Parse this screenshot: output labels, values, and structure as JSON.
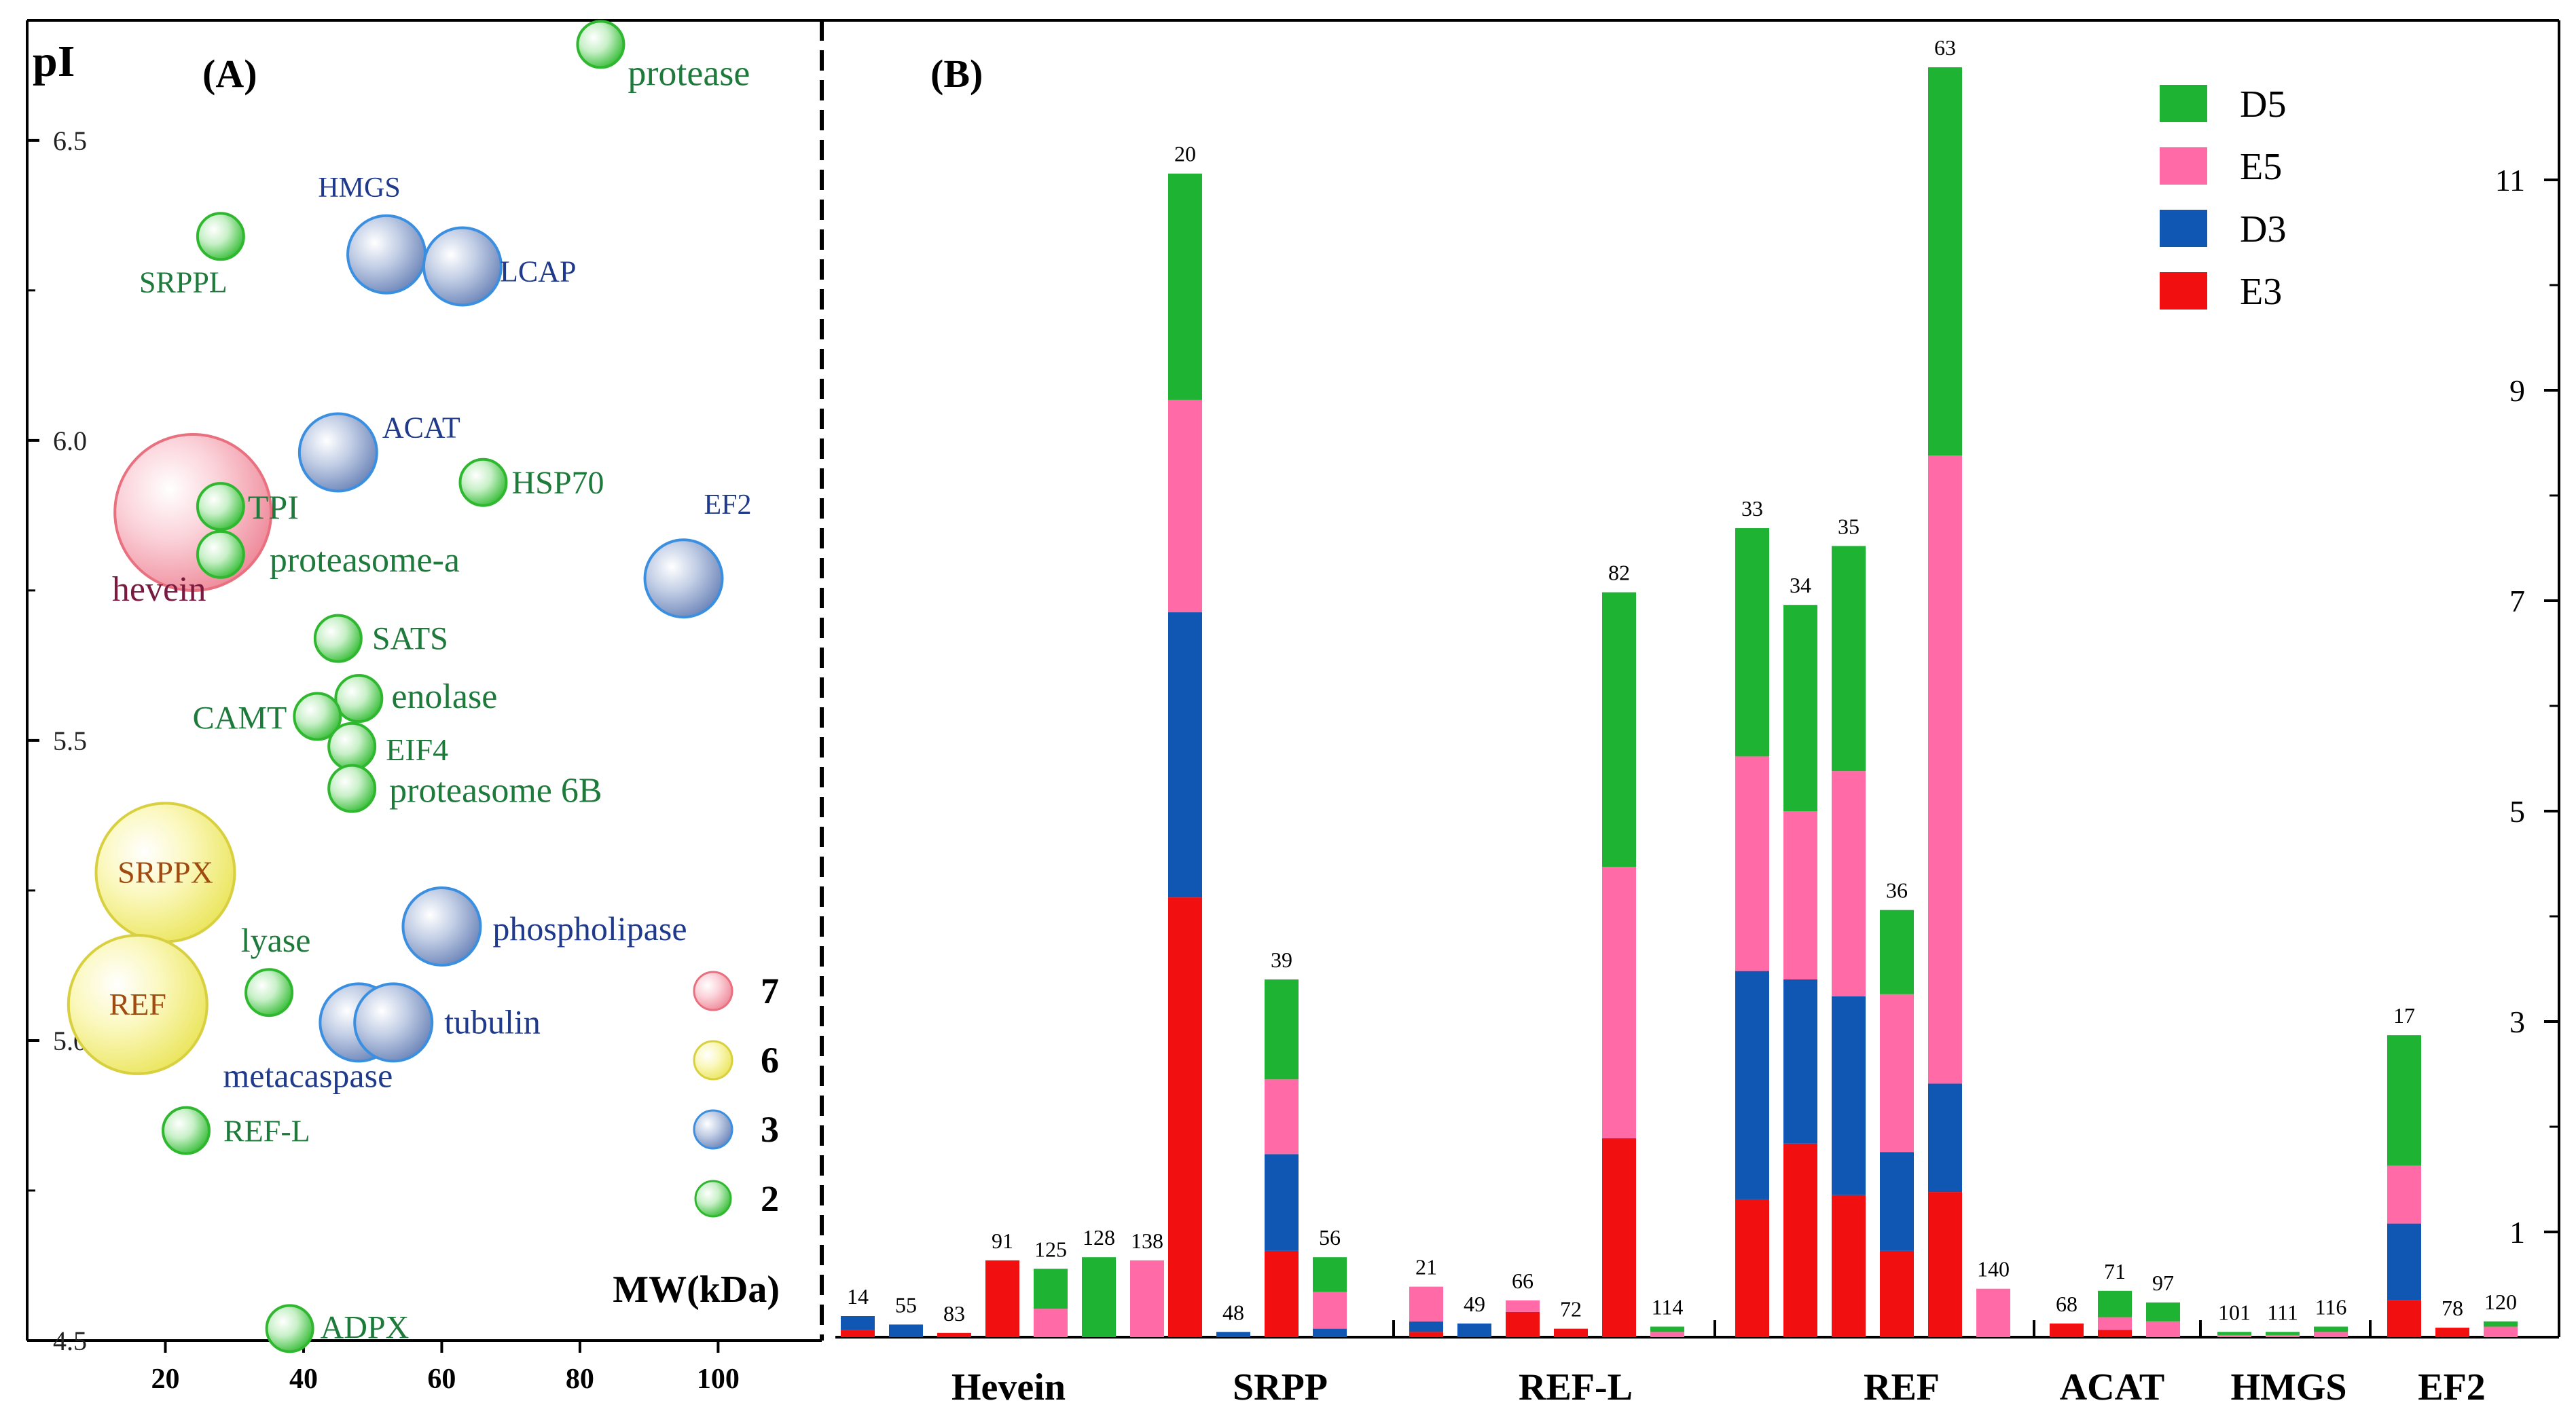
{
  "chart_data": [
    {
      "type": "scatter",
      "panel_label": "(A)",
      "ylabel": "pI",
      "xlabel": "MW(kDa)",
      "xlim": [
        0,
        115
      ],
      "ylim": [
        4.5,
        6.7
      ],
      "x_ticks": [
        20,
        40,
        60,
        80,
        100
      ],
      "y_ticks": [
        4.5,
        5.0,
        5.5,
        6.0,
        6.5
      ],
      "y_tick_labels": [
        "4.5",
        "5.0",
        "5.5",
        "6.0",
        "6.5"
      ],
      "size_legend": [
        {
          "label": "7",
          "value": 7,
          "color": "#f08a9a"
        },
        {
          "label": "6",
          "value": 6,
          "color": "#f0ec70"
        },
        {
          "label": "3",
          "value": 3,
          "color": "#7f96c4"
        },
        {
          "label": "2",
          "value": 2,
          "color": "#40c040"
        }
      ],
      "points": [
        {
          "name": "protease",
          "x": 83,
          "y": 6.66,
          "size": 2
        },
        {
          "name": "SRPPL",
          "x": 28,
          "y": 6.34,
          "size": 2
        },
        {
          "name": "HMGS",
          "x": 52,
          "y": 6.31,
          "size": 3
        },
        {
          "name": "LCAP",
          "x": 63,
          "y": 6.29,
          "size": 3
        },
        {
          "name": "ACAT",
          "x": 45,
          "y": 5.98,
          "size": 3
        },
        {
          "name": "HSP70",
          "x": 66,
          "y": 5.93,
          "size": 2
        },
        {
          "name": "EF2",
          "x": 95,
          "y": 5.77,
          "size": 3
        },
        {
          "name": "hevein",
          "x": 24,
          "y": 5.88,
          "size": 7
        },
        {
          "name": "TPI",
          "x": 28,
          "y": 5.89,
          "size": 2
        },
        {
          "name": "proteasome-a",
          "x": 28,
          "y": 5.81,
          "size": 2
        },
        {
          "name": "SATS",
          "x": 45,
          "y": 5.67,
          "size": 2
        },
        {
          "name": "enolase",
          "x": 48,
          "y": 5.57,
          "size": 2
        },
        {
          "name": "CAMT",
          "x": 42,
          "y": 5.54,
          "size": 2
        },
        {
          "name": "EIF4",
          "x": 47,
          "y": 5.49,
          "size": 2
        },
        {
          "name": "proteasome 6B",
          "x": 47,
          "y": 5.42,
          "size": 2
        },
        {
          "name": "SRPPX",
          "x": 20,
          "y": 5.28,
          "size": 6
        },
        {
          "name": "phospholipase",
          "x": 60,
          "y": 5.19,
          "size": 3
        },
        {
          "name": "lyase",
          "x": 35,
          "y": 5.08,
          "size": 2
        },
        {
          "name": "REF",
          "x": 16,
          "y": 5.06,
          "size": 6
        },
        {
          "name": "metacaspase",
          "x": 48,
          "y": 5.03,
          "size": 3
        },
        {
          "name": "tubulin",
          "x": 53,
          "y": 5.03,
          "size": 3
        },
        {
          "name": "REF-L",
          "x": 23,
          "y": 4.85,
          "size": 2
        },
        {
          "name": "ADPX",
          "x": 38,
          "y": 4.52,
          "size": 2
        }
      ]
    },
    {
      "type": "bar",
      "stacked": true,
      "panel_label": "(B)",
      "ylim": [
        0,
        12
      ],
      "y_ticks": [
        1,
        3,
        5,
        7,
        9,
        11
      ],
      "y_axis_side": "right",
      "legend": [
        {
          "name": "D5",
          "color": "#1eb332"
        },
        {
          "name": "E5",
          "color": "#ff6aa7"
        },
        {
          "name": "D3",
          "color": "#0f57b3"
        },
        {
          "name": "E3",
          "color": "#f20f0f"
        }
      ],
      "groups": [
        {
          "name": "Hevein",
          "spots": [
            {
              "id": "14",
              "E3": 0.07,
              "D3": 0.13,
              "E5": 0,
              "D5": 0
            },
            {
              "id": "55",
              "E3": 0,
              "D3": 0.12,
              "E5": 0,
              "D5": 0
            },
            {
              "id": "83",
              "E3": 0.04,
              "D3": 0,
              "E5": 0,
              "D5": 0
            },
            {
              "id": "91",
              "E3": 0.73,
              "D3": 0,
              "E5": 0,
              "D5": 0
            },
            {
              "id": "125",
              "E3": 0,
              "D3": 0,
              "E5": 0.27,
              "D5": 0.38
            },
            {
              "id": "128",
              "E3": 0,
              "D3": 0,
              "E5": 0,
              "D5": 0.76
            },
            {
              "id": "138",
              "E3": 0,
              "D3": 0,
              "E5": 0.73,
              "D5": 0
            }
          ]
        },
        {
          "name": "SRPP",
          "spots": [
            {
              "id": "20",
              "E3": 4.18,
              "D3": 2.71,
              "E5": 2.02,
              "D5": 2.15
            },
            {
              "id": "48",
              "E3": 0,
              "D3": 0.05,
              "E5": 0,
              "D5": 0
            },
            {
              "id": "39",
              "E3": 0.82,
              "D3": 0.92,
              "E5": 0.71,
              "D5": 0.95
            },
            {
              "id": "56",
              "E3": 0,
              "D3": 0.08,
              "E5": 0.35,
              "D5": 0.33
            }
          ]
        },
        {
          "name": "REF-L",
          "spots": [
            {
              "id": "21",
              "E3": 0.05,
              "D3": 0.1,
              "E5": 0.33,
              "D5": 0
            },
            {
              "id": "49",
              "E3": 0,
              "D3": 0.13,
              "E5": 0,
              "D5": 0
            },
            {
              "id": "66",
              "E3": 0.24,
              "D3": 0,
              "E5": 0.11,
              "D5": 0
            },
            {
              "id": "72",
              "E3": 0.08,
              "D3": 0,
              "E5": 0,
              "D5": 0
            },
            {
              "id": "82",
              "E3": 1.89,
              "D3": 0,
              "E5": 2.58,
              "D5": 2.61
            },
            {
              "id": "114",
              "E3": 0,
              "D3": 0,
              "E5": 0.05,
              "D5": 0.05
            }
          ]
        },
        {
          "name": "REF",
          "spots": [
            {
              "id": "33",
              "E3": 1.31,
              "D3": 2.17,
              "E5": 2.04,
              "D5": 2.17
            },
            {
              "id": "34",
              "E3": 1.84,
              "D3": 1.56,
              "E5": 1.6,
              "D5": 1.96
            },
            {
              "id": "35",
              "E3": 1.35,
              "D3": 1.89,
              "E5": 2.14,
              "D5": 2.14
            },
            {
              "id": "36",
              "E3": 0.82,
              "D3": 0.94,
              "E5": 1.5,
              "D5": 0.8
            },
            {
              "id": "63",
              "E3": 1.38,
              "D3": 1.03,
              "E5": 5.97,
              "D5": 3.69
            },
            {
              "id": "140",
              "E3": 0,
              "D3": 0,
              "E5": 0.46,
              "D5": 0
            }
          ]
        },
        {
          "name": "ACAT",
          "spots": [
            {
              "id": "68",
              "E3": 0.13,
              "D3": 0,
              "E5": 0,
              "D5": 0
            },
            {
              "id": "71",
              "E3": 0.07,
              "D3": 0,
              "E5": 0.12,
              "D5": 0.25
            },
            {
              "id": "97",
              "E3": 0,
              "D3": 0,
              "E5": 0.15,
              "D5": 0.18
            }
          ]
        },
        {
          "name": "HMGS",
          "spots": [
            {
              "id": "101",
              "E3": 0,
              "D3": 0,
              "E5": 0.02,
              "D5": 0.03
            },
            {
              "id": "111",
              "E3": 0,
              "D3": 0,
              "E5": 0.02,
              "D5": 0.03
            },
            {
              "id": "116",
              "E3": 0,
              "D3": 0,
              "E5": 0.05,
              "D5": 0.05
            }
          ]
        },
        {
          "name": "EF2",
          "spots": [
            {
              "id": "17",
              "E3": 0.35,
              "D3": 0.73,
              "E5": 0.55,
              "D5": 1.24
            },
            {
              "id": "78",
              "E3": 0.09,
              "D3": 0,
              "E5": 0,
              "D5": 0
            },
            {
              "id": "120",
              "E3": 0,
              "D3": 0,
              "E5": 0.1,
              "D5": 0.05
            }
          ]
        }
      ]
    }
  ]
}
